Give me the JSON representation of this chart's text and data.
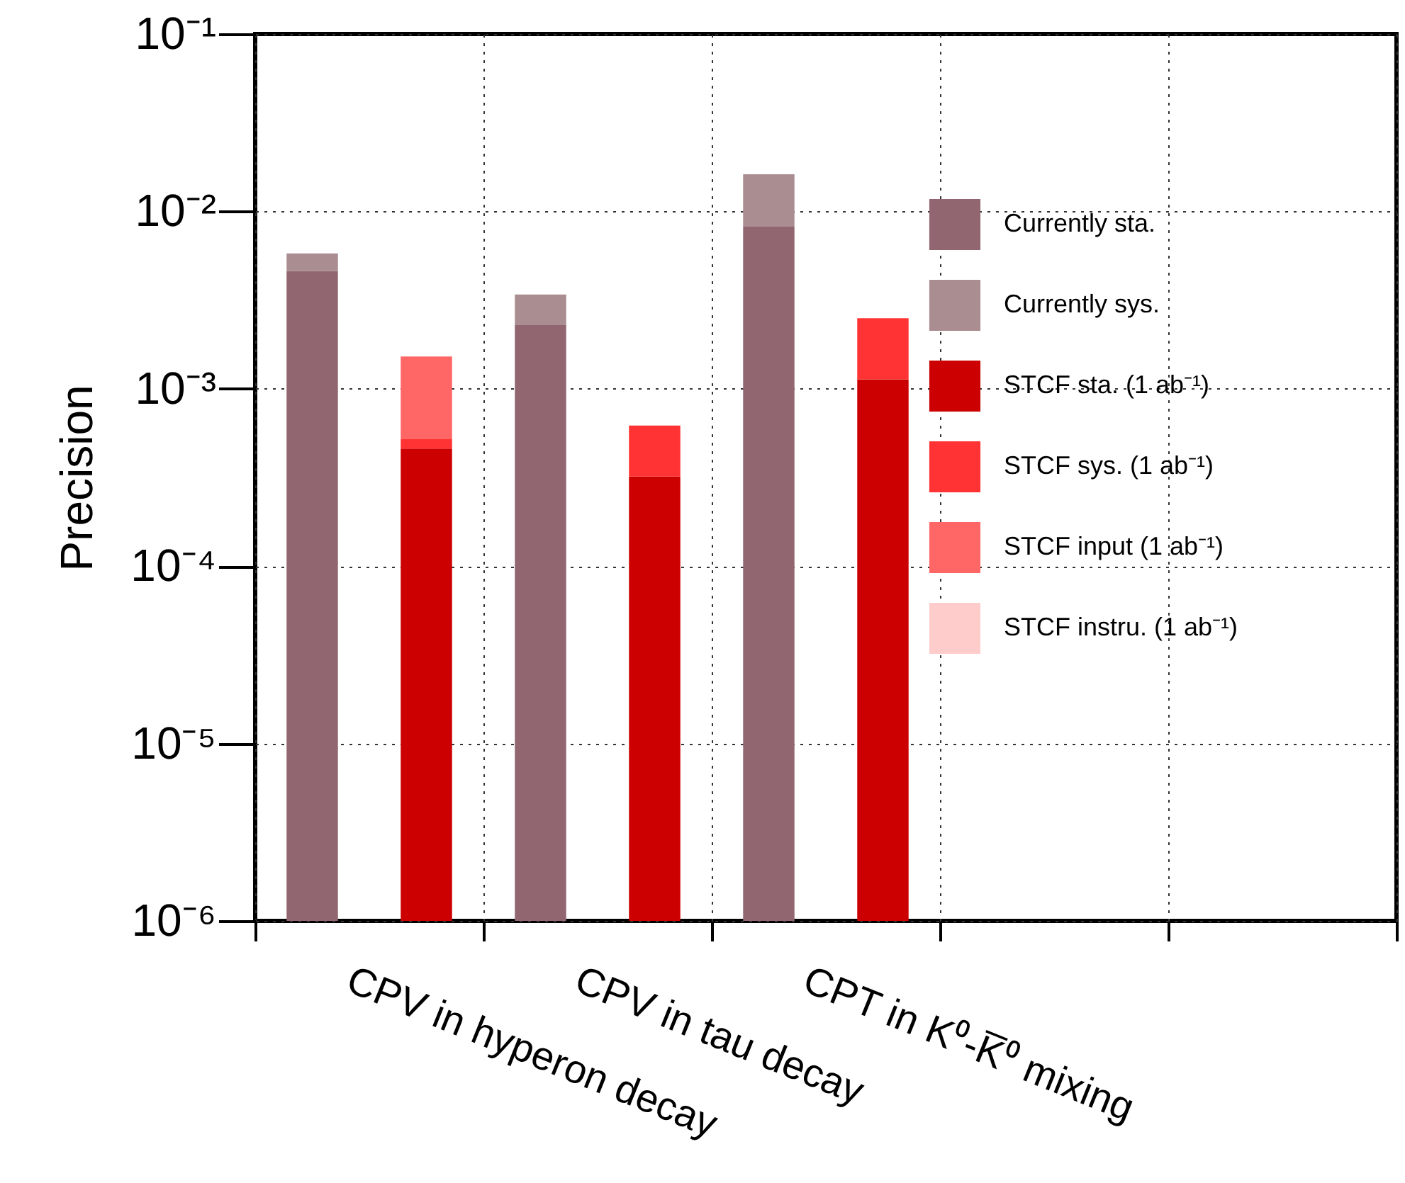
{
  "chart_data": {
    "type": "bar",
    "stacked": true,
    "log": true,
    "grid": true,
    "legend": "top right",
    "ylabel": "Precision",
    "categories": [
      "CPV in hyperon decay",
      null,
      "CPV in tau decay",
      null,
      "CPT in K⁰-K̅⁰ mixing",
      null,
      null,
      null,
      null,
      null
    ],
    "ylim": [
      1e-06,
      0.1
    ],
    "yticks": [
      {
        "value": 1e-06,
        "label": "10⁻⁶"
      },
      {
        "value": 1e-05,
        "label": "10⁻⁵"
      },
      {
        "value": 0.0001,
        "label": "10⁻⁴"
      },
      {
        "value": 0.001,
        "label": "10⁻³"
      },
      {
        "value": 0.01,
        "label": "10⁻²"
      },
      {
        "value": 0.1,
        "label": "10⁻¹"
      }
    ],
    "series": [
      {
        "name": "Currently sta.",
        "color": "#916670",
        "values": [
          0.0046,
          null,
          0.0023,
          null,
          0.0082,
          null,
          null,
          null,
          null,
          null
        ]
      },
      {
        "name": "Currently sys.",
        "color": "#a98d90",
        "values": [
          0.0012,
          null,
          0.0011,
          null,
          0.008,
          null,
          null,
          null,
          null,
          null
        ]
      },
      {
        "name": "STCF sta. (1 ab⁻¹)",
        "color": "#cc0000",
        "values": [
          null,
          0.00046,
          null,
          0.00032,
          null,
          0.00113,
          null,
          null,
          null,
          null
        ]
      },
      {
        "name": "STCF sys. (1 ab⁻¹)",
        "color": "#ff3333",
        "values": [
          null,
          6e-05,
          null,
          0.0003,
          null,
          0.00137,
          null,
          null,
          null,
          null
        ]
      },
      {
        "name": "STCF input (1 ab⁻¹)",
        "color": "#ff6666",
        "values": [
          null,
          0.001,
          null,
          null,
          null,
          null,
          null,
          null,
          null,
          null
        ]
      },
      {
        "name": "STCF instru. (1 ab⁻¹)",
        "color": "#ffcccc",
        "values": [
          null,
          null,
          null,
          null,
          null,
          null,
          null,
          null,
          null,
          null
        ]
      }
    ]
  }
}
